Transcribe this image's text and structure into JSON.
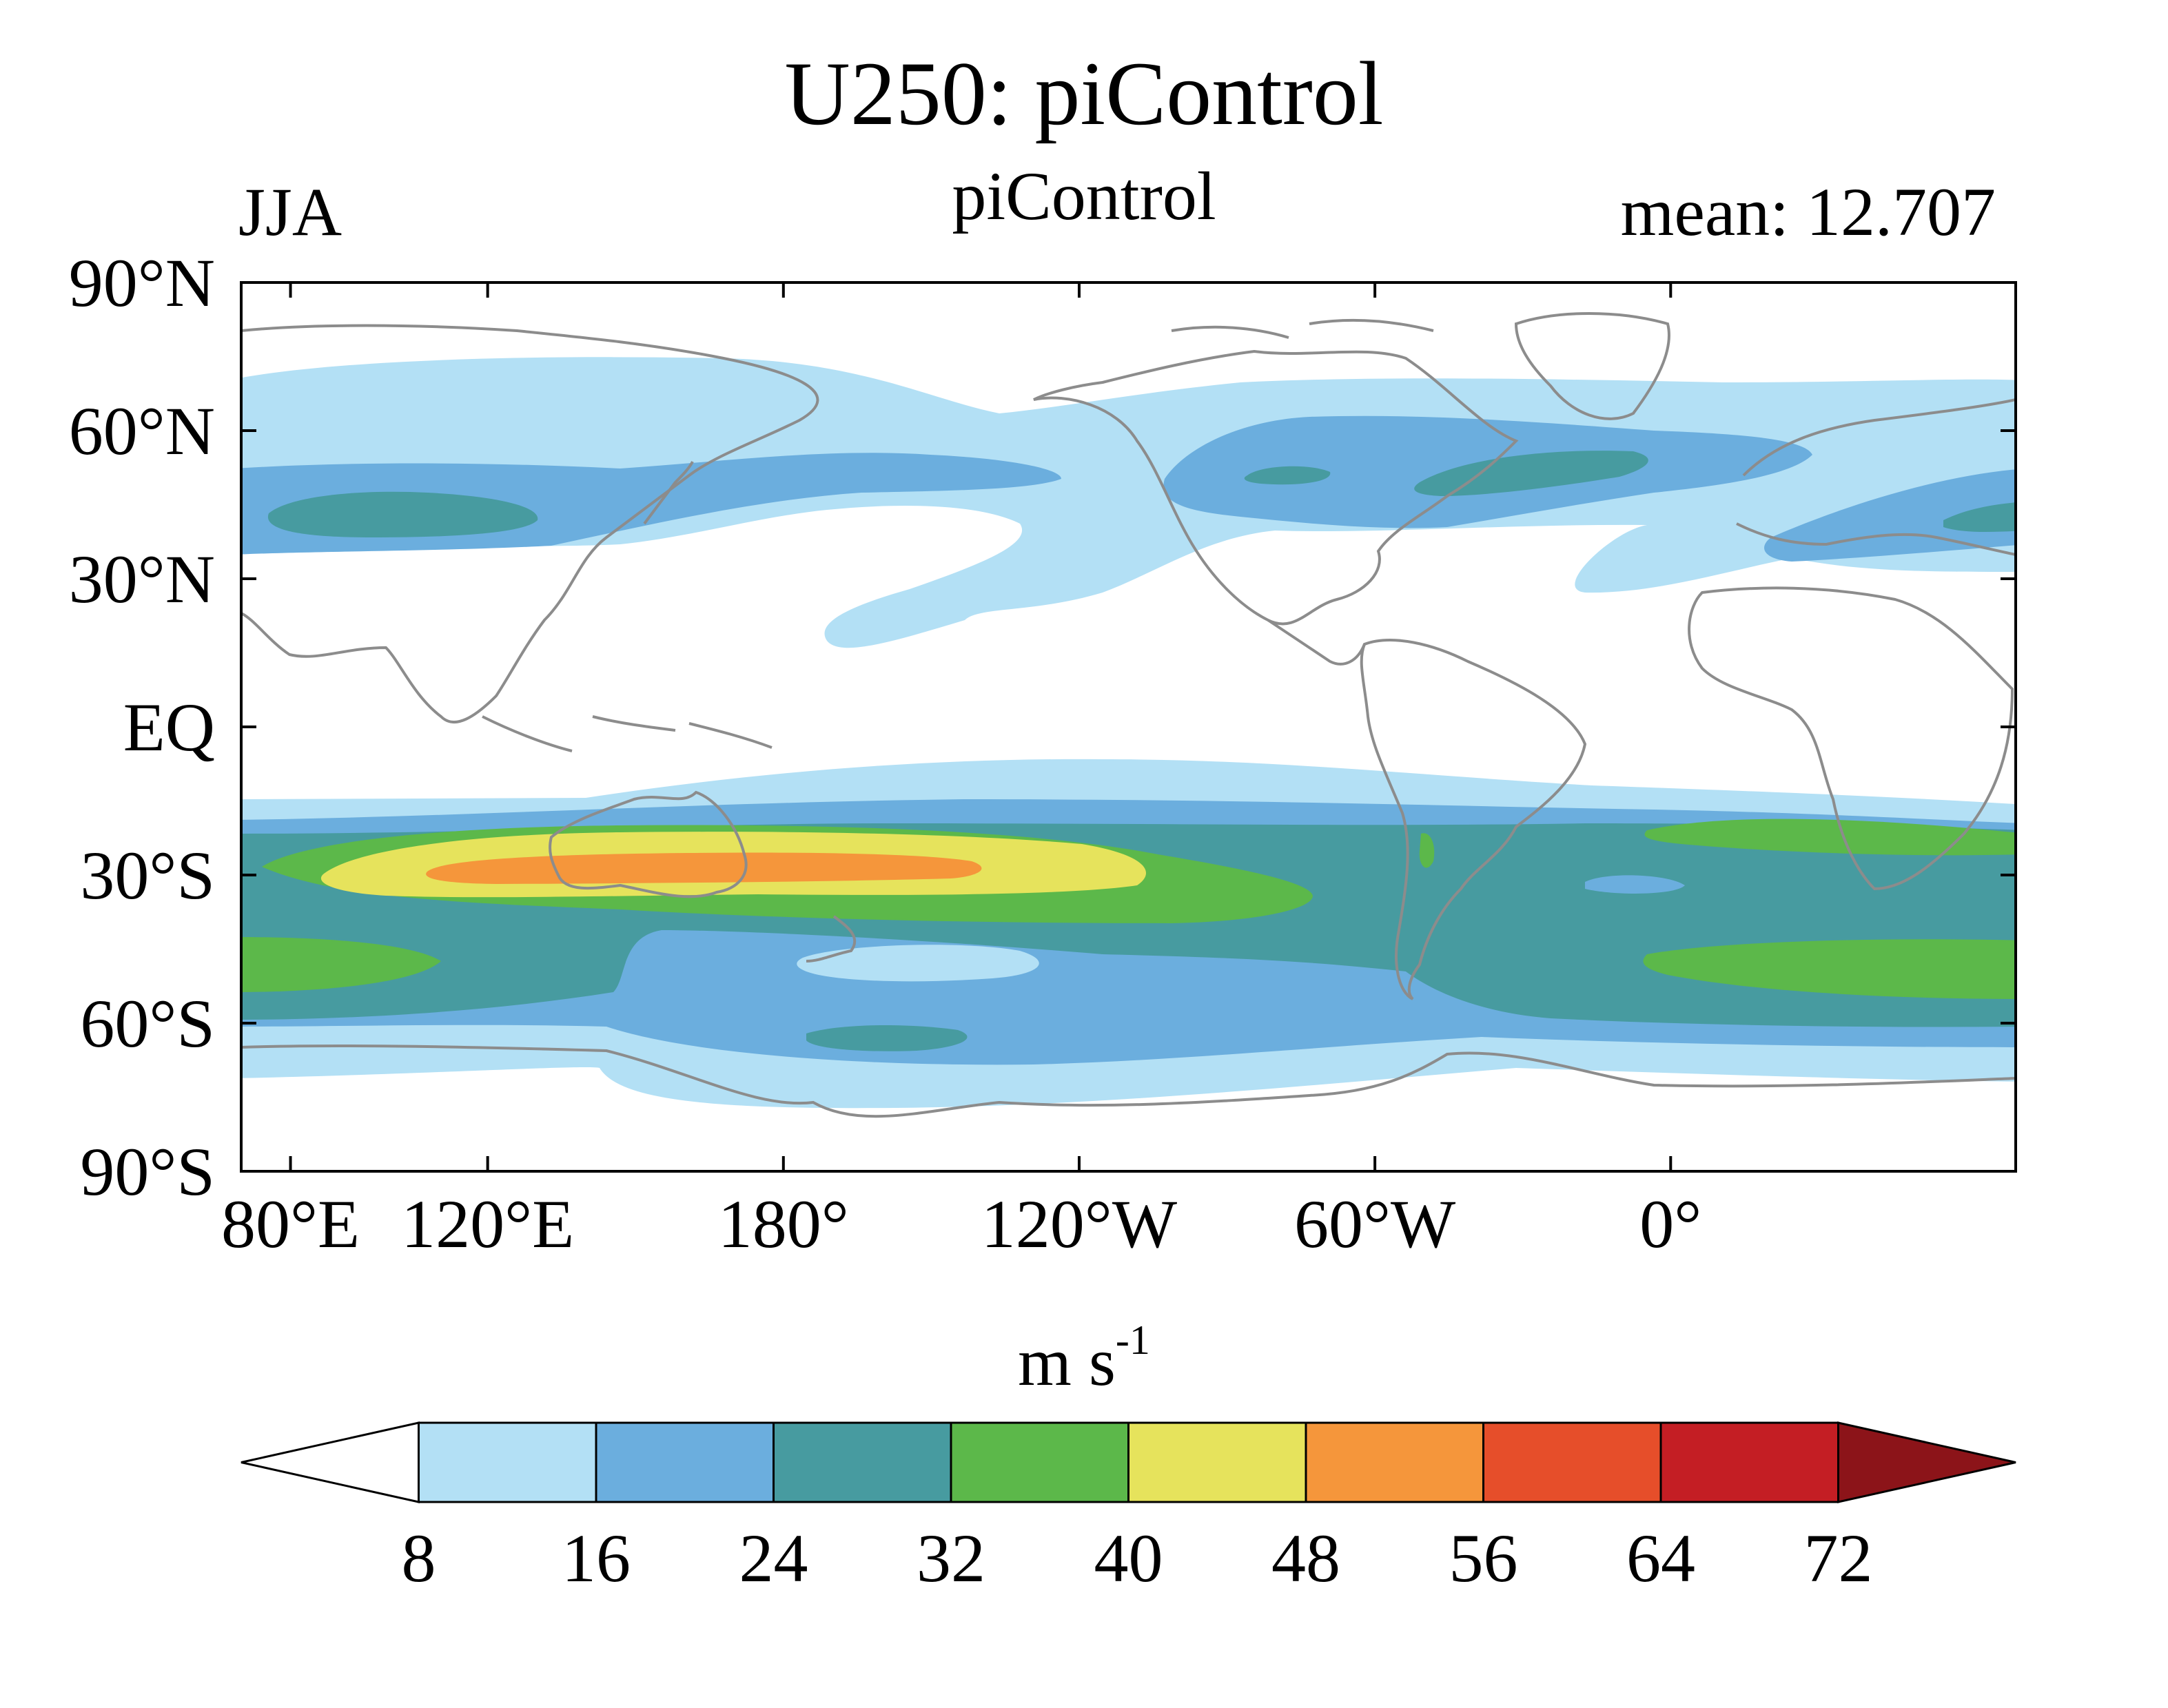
{
  "header": {
    "title": "U250: piControl",
    "season": "JJA",
    "subtitle": "piControl",
    "mean_label": "mean: 12.707"
  },
  "map": {
    "lat_ticks": [
      "90°N",
      "60°N",
      "30°N",
      "EQ",
      "30°S",
      "60°S",
      "90°S"
    ],
    "lon_ticks": [
      "80°E",
      "120°E",
      "180°",
      "120°W",
      "60°W",
      "0°"
    ],
    "lon_range": [
      70,
      430
    ],
    "lat_range": [
      -90,
      90
    ],
    "coastline_color": "#8c8c8c"
  },
  "colorbar": {
    "units_base": "m s",
    "units_exp": "-1",
    "levels": [
      "8",
      "16",
      "24",
      "32",
      "40",
      "48",
      "56",
      "64",
      "72"
    ],
    "colors": [
      "#ffffff",
      "#b3e0f5",
      "#6baede",
      "#479ba0",
      "#5cb84a",
      "#e6e35c",
      "#f5963b",
      "#e64e2a",
      "#c41e24",
      "#8c1419"
    ]
  }
}
